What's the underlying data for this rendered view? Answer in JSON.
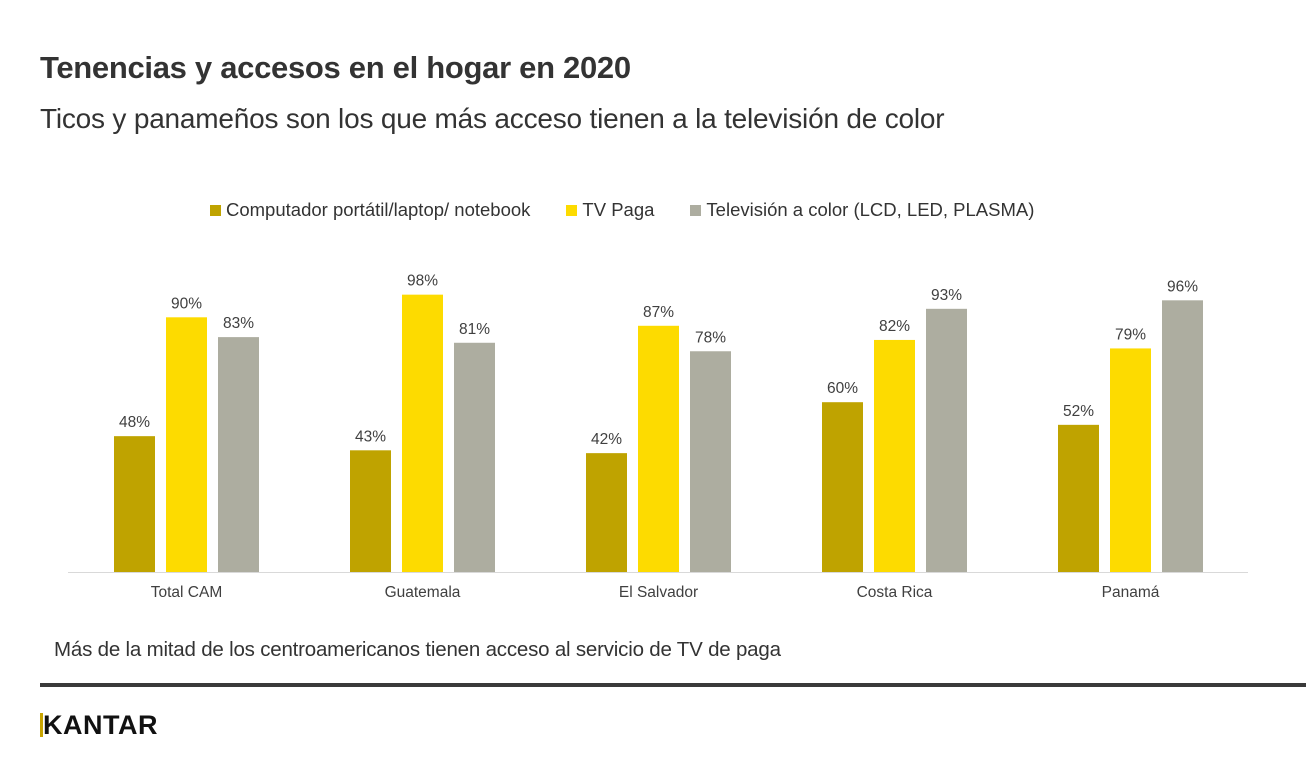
{
  "header": {
    "title": "Tenencias y accesos en el hogar en 2020",
    "subtitle": "Ticos y panameños son los que más acceso tienen a la televisión de color"
  },
  "footer": {
    "note": "Más de la mitad de los centroamericanos tienen acceso al servicio de TV de paga",
    "logo": "KANTAR",
    "logo_k": "K",
    "logo_rest": "ANTAR"
  },
  "chart_data": {
    "type": "bar",
    "title": "Tenencias y accesos en el hogar en 2020",
    "xlabel": "",
    "ylabel": "",
    "ylim": [
      0,
      100
    ],
    "grid": false,
    "legend_position": "top",
    "value_format": "percent",
    "categories": [
      "Total CAM",
      "Guatemala",
      "El Salvador",
      "Costa Rica",
      "Panamá"
    ],
    "series": [
      {
        "name": "Computador portátil/laptop/ notebook",
        "color": "#bfa300",
        "values": [
          48,
          43,
          42,
          60,
          52
        ]
      },
      {
        "name": "TV Paga",
        "color": "#fddb00",
        "values": [
          90,
          98,
          87,
          82,
          79
        ]
      },
      {
        "name": "Televisión a color (LCD, LED, PLASMA)",
        "color": "#adada0",
        "values": [
          83,
          81,
          78,
          93,
          96
        ]
      }
    ]
  }
}
